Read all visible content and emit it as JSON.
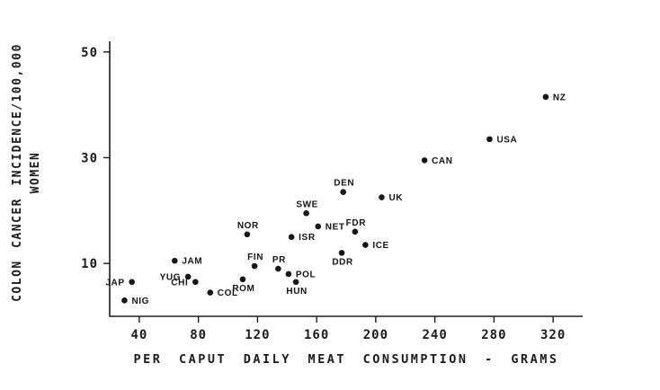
{
  "figure": {
    "background": "#ffffff",
    "ink_color": "#1b1b1b"
  },
  "chart_data": {
    "type": "scatter",
    "title": "",
    "xlabel": "PER CAPUT DAILY MEAT CONSUMPTION - GRAMS",
    "ylabel_lines": [
      "COLON CANCER INCIDENCE/100,000",
      "WOMEN"
    ],
    "xlim": [
      20,
      340
    ],
    "ylim": [
      0,
      52
    ],
    "x_ticks": [
      40,
      80,
      120,
      160,
      200,
      240,
      280,
      320
    ],
    "y_ticks": [
      10,
      30,
      50
    ],
    "grid": false,
    "legend": "none",
    "point_color": "#161616",
    "points": [
      {
        "label": "NZ",
        "x": 315,
        "y": 41.5,
        "label_pos": "right"
      },
      {
        "label": "USA",
        "x": 277,
        "y": 33.5,
        "label_pos": "right"
      },
      {
        "label": "CAN",
        "x": 233,
        "y": 29.5,
        "label_pos": "right"
      },
      {
        "label": "UK",
        "x": 204,
        "y": 22.5,
        "label_pos": "right"
      },
      {
        "label": "DEN",
        "x": 178,
        "y": 23.5,
        "label_pos": "above"
      },
      {
        "label": "SWE",
        "x": 153,
        "y": 19.5,
        "label_pos": "above"
      },
      {
        "label": "NET",
        "x": 161,
        "y": 17.0,
        "label_pos": "right"
      },
      {
        "label": "FDR",
        "x": 186,
        "y": 16.0,
        "label_pos": "above"
      },
      {
        "label": "NOR",
        "x": 113,
        "y": 15.5,
        "label_pos": "above"
      },
      {
        "label": "ISR",
        "x": 143,
        "y": 15.0,
        "label_pos": "right"
      },
      {
        "label": "ICE",
        "x": 193,
        "y": 13.5,
        "label_pos": "right"
      },
      {
        "label": "DDR",
        "x": 177,
        "y": 12.0,
        "label_pos": "below"
      },
      {
        "label": "JAM",
        "x": 64,
        "y": 10.5,
        "label_pos": "right"
      },
      {
        "label": "FIN",
        "x": 118,
        "y": 9.5,
        "label_pos": "above"
      },
      {
        "label": "PR",
        "x": 134,
        "y": 9.0,
        "label_pos": "above"
      },
      {
        "label": "POL",
        "x": 141,
        "y": 8.0,
        "label_pos": "right"
      },
      {
        "label": "YUG",
        "x": 73,
        "y": 7.5,
        "label_pos": "left"
      },
      {
        "label": "ROM",
        "x": 110,
        "y": 7.0,
        "label_pos": "below"
      },
      {
        "label": "HUN",
        "x": 146,
        "y": 6.5,
        "label_pos": "below"
      },
      {
        "label": "CHI",
        "x": 78,
        "y": 6.5,
        "label_pos": "left"
      },
      {
        "label": "JAP",
        "x": 35,
        "y": 6.5,
        "label_pos": "left"
      },
      {
        "label": "COL",
        "x": 88,
        "y": 4.5,
        "label_pos": "right"
      },
      {
        "label": "NIG",
        "x": 30,
        "y": 3.0,
        "label_pos": "right"
      }
    ]
  }
}
